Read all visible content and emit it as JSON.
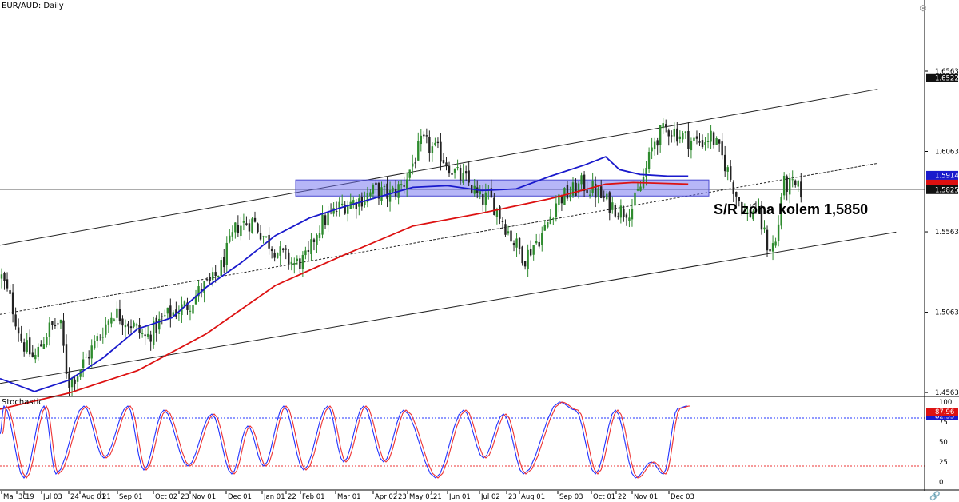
{
  "window": {
    "pair_title": "EUR/AUD: Daily",
    "oscillator_title": "Stochastic"
  },
  "annotation": {
    "text": "S/R zóna kolem 1,5850"
  },
  "colors": {
    "candle_up": "#2e8b2e",
    "candle_down": "#222222",
    "ma_blue": "#1a1acc",
    "ma_red": "#dd1111",
    "zone_fill": "rgba(110,110,240,0.50)",
    "channel": "#222222",
    "stoch_k": "#2233ff",
    "stoch_d": "#ee3333",
    "price_label_bg": "#1a1acc",
    "current_label_bg": "#111111"
  },
  "icons": {
    "top_right": "gear-icon",
    "bottom_right": "link-icon"
  },
  "chart_data": [
    {
      "type": "candlestick",
      "title": "EUR/AUD: Daily",
      "y_ticks": [
        "1.65634",
        "1.60634",
        "1.55634",
        "1.50634",
        "1.45634"
      ],
      "x_ticks": [
        "Ma",
        "30",
        "19",
        "Jul 03",
        "24",
        "Aug 01",
        "21",
        "Sep 01",
        "Oct 02",
        "23",
        "Nov 01",
        "Dec 01",
        "Jan 01",
        "22",
        "Feb 01",
        "Mar 01",
        "Apr 02",
        "23",
        "May 01",
        "21",
        "Jun 01",
        "Jul 02",
        "23",
        "Aug 01",
        "Sep 03",
        "Oct 01",
        "22",
        "Nov 01",
        "Dec 03"
      ],
      "ylim": [
        1.4539,
        1.7006
      ],
      "price_labels": [
        {
          "text": "1.65222",
          "value": 1.65222,
          "style": "black"
        },
        {
          "text": "1.59147",
          "value": 1.59147,
          "style": "blue"
        },
        {
          "text": "1.58258",
          "value": 1.58258,
          "style": "black"
        }
      ],
      "hidden_red_label": {
        "value": 1.5864
      },
      "horizontal_line": 1.5828,
      "support_resistance_zone": [
        1.5786,
        1.5886
      ],
      "channel": {
        "upper": [
          [
            0,
            1.548
          ],
          [
            1.35,
            1.686
          ]
        ],
        "middle": [
          [
            0,
            1.505
          ],
          [
            1.36,
            1.6395
          ]
        ],
        "lower": [
          [
            0,
            1.462
          ],
          [
            1.37,
            1.595
          ]
        ]
      },
      "close_path": [
        [
          0.0,
          1.528
        ],
        [
          0.012,
          1.512
        ],
        [
          0.025,
          1.488
        ],
        [
          0.04,
          1.477
        ],
        [
          0.058,
          1.496
        ],
        [
          0.072,
          1.5
        ],
        [
          0.082,
          1.462
        ],
        [
          0.093,
          1.468
        ],
        [
          0.115,
          1.487
        ],
        [
          0.138,
          1.507
        ],
        [
          0.16,
          1.499
        ],
        [
          0.178,
          1.49
        ],
        [
          0.2,
          1.503
        ],
        [
          0.23,
          1.511
        ],
        [
          0.248,
          1.522
        ],
        [
          0.258,
          1.524
        ],
        [
          0.27,
          1.534
        ],
        [
          0.29,
          1.56
        ],
        [
          0.31,
          1.563
        ],
        [
          0.325,
          1.552
        ],
        [
          0.342,
          1.543
        ],
        [
          0.362,
          1.536
        ],
        [
          0.378,
          1.54
        ],
        [
          0.387,
          1.556
        ],
        [
          0.395,
          1.562
        ],
        [
          0.42,
          1.573
        ],
        [
          0.44,
          1.576
        ],
        [
          0.46,
          1.582
        ],
        [
          0.478,
          1.579
        ],
        [
          0.495,
          1.586
        ],
        [
          0.518,
          1.612
        ],
        [
          0.54,
          1.605
        ],
        [
          0.56,
          1.592
        ],
        [
          0.575,
          1.587
        ],
        [
          0.59,
          1.576
        ],
        [
          0.6,
          1.578
        ],
        [
          0.612,
          1.569
        ],
        [
          0.63,
          1.551
        ],
        [
          0.645,
          1.54
        ],
        [
          0.655,
          1.548
        ],
        [
          0.668,
          1.556
        ],
        [
          0.685,
          1.577
        ],
        [
          0.7,
          1.58
        ],
        [
          0.715,
          1.586
        ],
        [
          0.73,
          1.582
        ],
        [
          0.745,
          1.575
        ],
        [
          0.765,
          1.569
        ],
        [
          0.778,
          1.572
        ],
        [
          0.79,
          1.588
        ],
        [
          0.805,
          1.614
        ],
        [
          0.82,
          1.621
        ],
        [
          0.835,
          1.617
        ],
        [
          0.85,
          1.613
        ],
        [
          0.862,
          1.612
        ],
        [
          0.875,
          1.616
        ],
        [
          0.892,
          1.598
        ],
        [
          0.905,
          1.58
        ],
        [
          0.918,
          1.566
        ],
        [
          0.93,
          1.571
        ],
        [
          0.945,
          1.546
        ],
        [
          0.955,
          1.55
        ],
        [
          0.962,
          1.586
        ],
        [
          0.975,
          1.584
        ],
        [
          0.985,
          1.582
        ]
      ],
      "ma_blue": [
        [
          0.0,
          1.465
        ],
        [
          0.05,
          1.457
        ],
        [
          0.1,
          1.464
        ],
        [
          0.15,
          1.478
        ],
        [
          0.2,
          1.496
        ],
        [
          0.25,
          1.503
        ],
        [
          0.3,
          1.522
        ],
        [
          0.35,
          1.537
        ],
        [
          0.4,
          1.554
        ],
        [
          0.45,
          1.565
        ],
        [
          0.5,
          1.572
        ],
        [
          0.55,
          1.578
        ],
        [
          0.6,
          1.584
        ],
        [
          0.65,
          1.585
        ],
        [
          0.7,
          1.582
        ],
        [
          0.75,
          1.583
        ],
        [
          0.8,
          1.591
        ],
        [
          0.85,
          1.598
        ],
        [
          0.88,
          1.603
        ],
        [
          0.9,
          1.595
        ],
        [
          0.93,
          1.592
        ],
        [
          0.97,
          1.591
        ],
        [
          1.0,
          1.591
        ]
      ],
      "ma_red": [
        [
          0.0,
          1.446
        ],
        [
          0.1,
          1.456
        ],
        [
          0.2,
          1.47
        ],
        [
          0.3,
          1.493
        ],
        [
          0.4,
          1.523
        ],
        [
          0.5,
          1.542
        ],
        [
          0.6,
          1.56
        ],
        [
          0.7,
          1.568
        ],
        [
          0.8,
          1.577
        ],
        [
          0.88,
          1.586
        ],
        [
          0.92,
          1.587
        ],
        [
          1.0,
          1.586
        ]
      ]
    },
    {
      "type": "line",
      "title": "Stochastic",
      "y_ticks": [
        "100",
        "75",
        "50",
        "25",
        "0"
      ],
      "ylim": [
        0,
        100
      ],
      "levels": [
        80,
        20
      ],
      "value_labels": [
        {
          "text": "82.35",
          "value": 82.35
        },
        {
          "text": "87.96",
          "value": 87.96
        }
      ],
      "k_cycles": [
        [
          5,
          95
        ],
        [
          30,
          5
        ],
        [
          55,
          95
        ],
        [
          70,
          10
        ],
        [
          105,
          95
        ],
        [
          130,
          30
        ],
        [
          160,
          95
        ],
        [
          180,
          15
        ],
        [
          205,
          90
        ],
        [
          235,
          20
        ],
        [
          265,
          85
        ],
        [
          290,
          10
        ],
        [
          310,
          70
        ],
        [
          330,
          20
        ],
        [
          355,
          95
        ],
        [
          380,
          15
        ],
        [
          410,
          95
        ],
        [
          430,
          25
        ],
        [
          455,
          95
        ],
        [
          480,
          25
        ],
        [
          505,
          90
        ],
        [
          545,
          5
        ],
        [
          580,
          90
        ],
        [
          605,
          30
        ],
        [
          630,
          85
        ],
        [
          655,
          10
        ],
        [
          700,
          100
        ],
        [
          720,
          90
        ],
        [
          745,
          10
        ],
        [
          770,
          90
        ],
        [
          795,
          5
        ],
        [
          815,
          25
        ],
        [
          830,
          10
        ],
        [
          848,
          92
        ],
        [
          860,
          95
        ]
      ]
    }
  ]
}
